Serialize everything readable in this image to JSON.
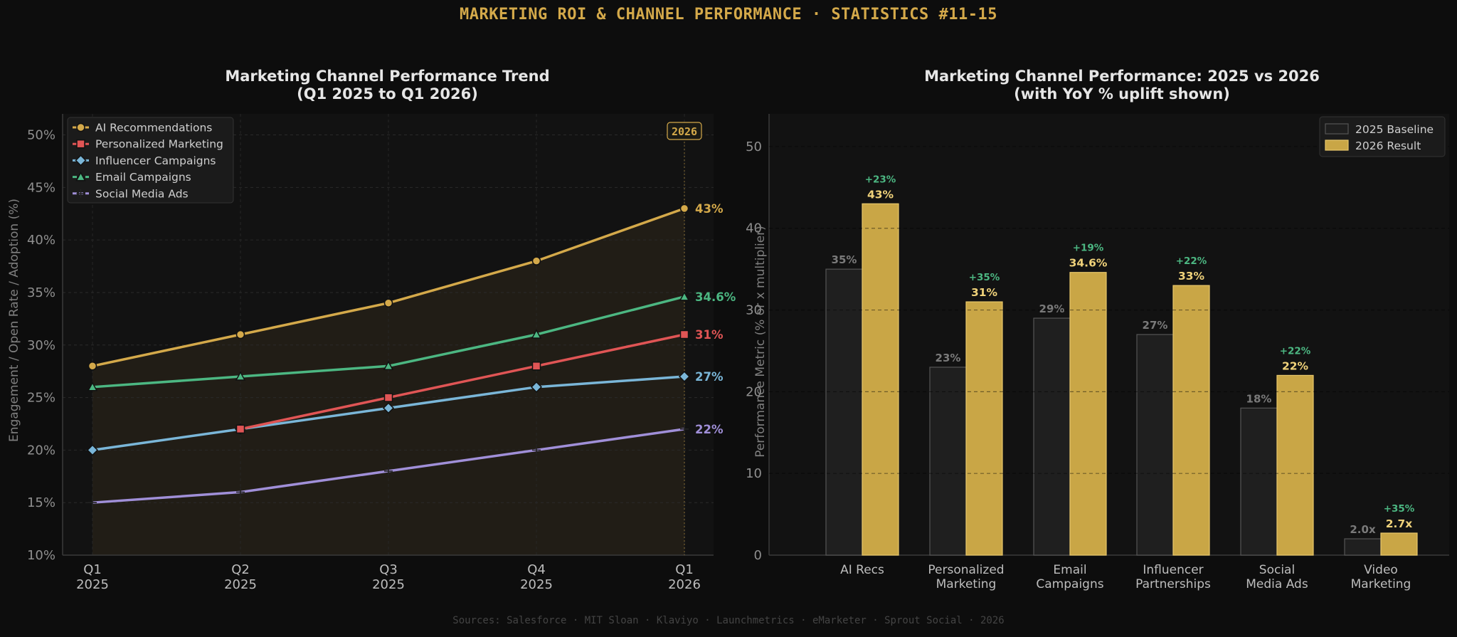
{
  "main_title": "MARKETING ROI & CHANNEL PERFORMANCE  ·  STATISTICS #11-15",
  "footer": "Sources: Salesforce · MIT Sloan · Klaviyo · Launchmetrics · eMarketer · Sprout Social · 2026",
  "colors": {
    "background": "#0d0d0d",
    "panel": "#121212",
    "gold": "#d4a94a",
    "red": "#e05555",
    "blue": "#7ab6d8",
    "green": "#4cb782",
    "purple": "#a08fd8",
    "baseline_bar": "#1f1f1f",
    "uplift_text": "#4cb782"
  },
  "chart_data": [
    {
      "type": "line",
      "title": [
        "Marketing Channel Performance Trend",
        "(Q1 2025 to Q1 2026)"
      ],
      "xlabel": "",
      "ylabel": "Engagement / Open Rate / Adoption (%)",
      "x": [
        [
          "Q1",
          "2025"
        ],
        [
          "Q2",
          "2025"
        ],
        [
          "Q3",
          "2025"
        ],
        [
          "Q4",
          "2025"
        ],
        [
          "Q1",
          "2026"
        ]
      ],
      "ylim": [
        10,
        52
      ],
      "yticks": [
        10,
        15,
        20,
        25,
        30,
        35,
        40,
        45,
        50
      ],
      "ytick_suffix": "%",
      "annotation": "2026",
      "legend_position": "top-left",
      "grid": true,
      "series": [
        {
          "name": "AI Recommendations",
          "values": [
            28,
            31,
            34,
            38,
            43
          ],
          "color": "#d4a94a",
          "marker": "circle",
          "end_label": "43%"
        },
        {
          "name": "Personalized Marketing",
          "values": [
            null,
            22,
            25,
            28,
            31
          ],
          "color": "#e05555",
          "marker": "square",
          "end_label": "31%"
        },
        {
          "name": "Influencer Campaigns",
          "values": [
            20,
            22,
            24,
            26,
            27
          ],
          "color": "#7ab6d8",
          "marker": "diamond",
          "end_label": "27%"
        },
        {
          "name": "Email Campaigns",
          "values": [
            26,
            27,
            28,
            31,
            34.6
          ],
          "color": "#4cb782",
          "marker": "triangle",
          "end_label": "34.6%"
        },
        {
          "name": "Social Media Ads",
          "values": [
            15,
            16,
            18,
            20,
            22
          ],
          "color": "#a08fd8",
          "marker": "plus",
          "end_label": "22%"
        }
      ]
    },
    {
      "type": "bar",
      "title": [
        "Marketing Channel Performance: 2025 vs 2026",
        "(with YoY % uplift shown)"
      ],
      "xlabel": "",
      "ylabel": "Performance Metric (% or x multiplier)",
      "ylim": [
        0,
        54
      ],
      "yticks": [
        0,
        10,
        20,
        30,
        40,
        50
      ],
      "legend_position": "top-right",
      "grid": true,
      "categories": [
        [
          "AI Recs"
        ],
        [
          "Personalized",
          "Marketing"
        ],
        [
          "Email",
          "Campaigns"
        ],
        [
          "Influencer",
          "Partnerships"
        ],
        [
          "Social",
          "Media Ads"
        ],
        [
          "Video",
          "Marketing"
        ]
      ],
      "series": [
        {
          "name": "2025 Baseline",
          "values": [
            35,
            23,
            29,
            27,
            18,
            2.0
          ],
          "labels": [
            "35%",
            "23%",
            "29%",
            "27%",
            "18%",
            "2.0x"
          ]
        },
        {
          "name": "2026 Result",
          "values": [
            43,
            31,
            34.6,
            33,
            22,
            2.7
          ],
          "labels": [
            "43%",
            "31%",
            "34.6%",
            "33%",
            "22%",
            "2.7x"
          ]
        }
      ],
      "uplift": [
        "+23%",
        "+35%",
        "+19%",
        "+22%",
        "+22%",
        "+35%"
      ]
    }
  ]
}
